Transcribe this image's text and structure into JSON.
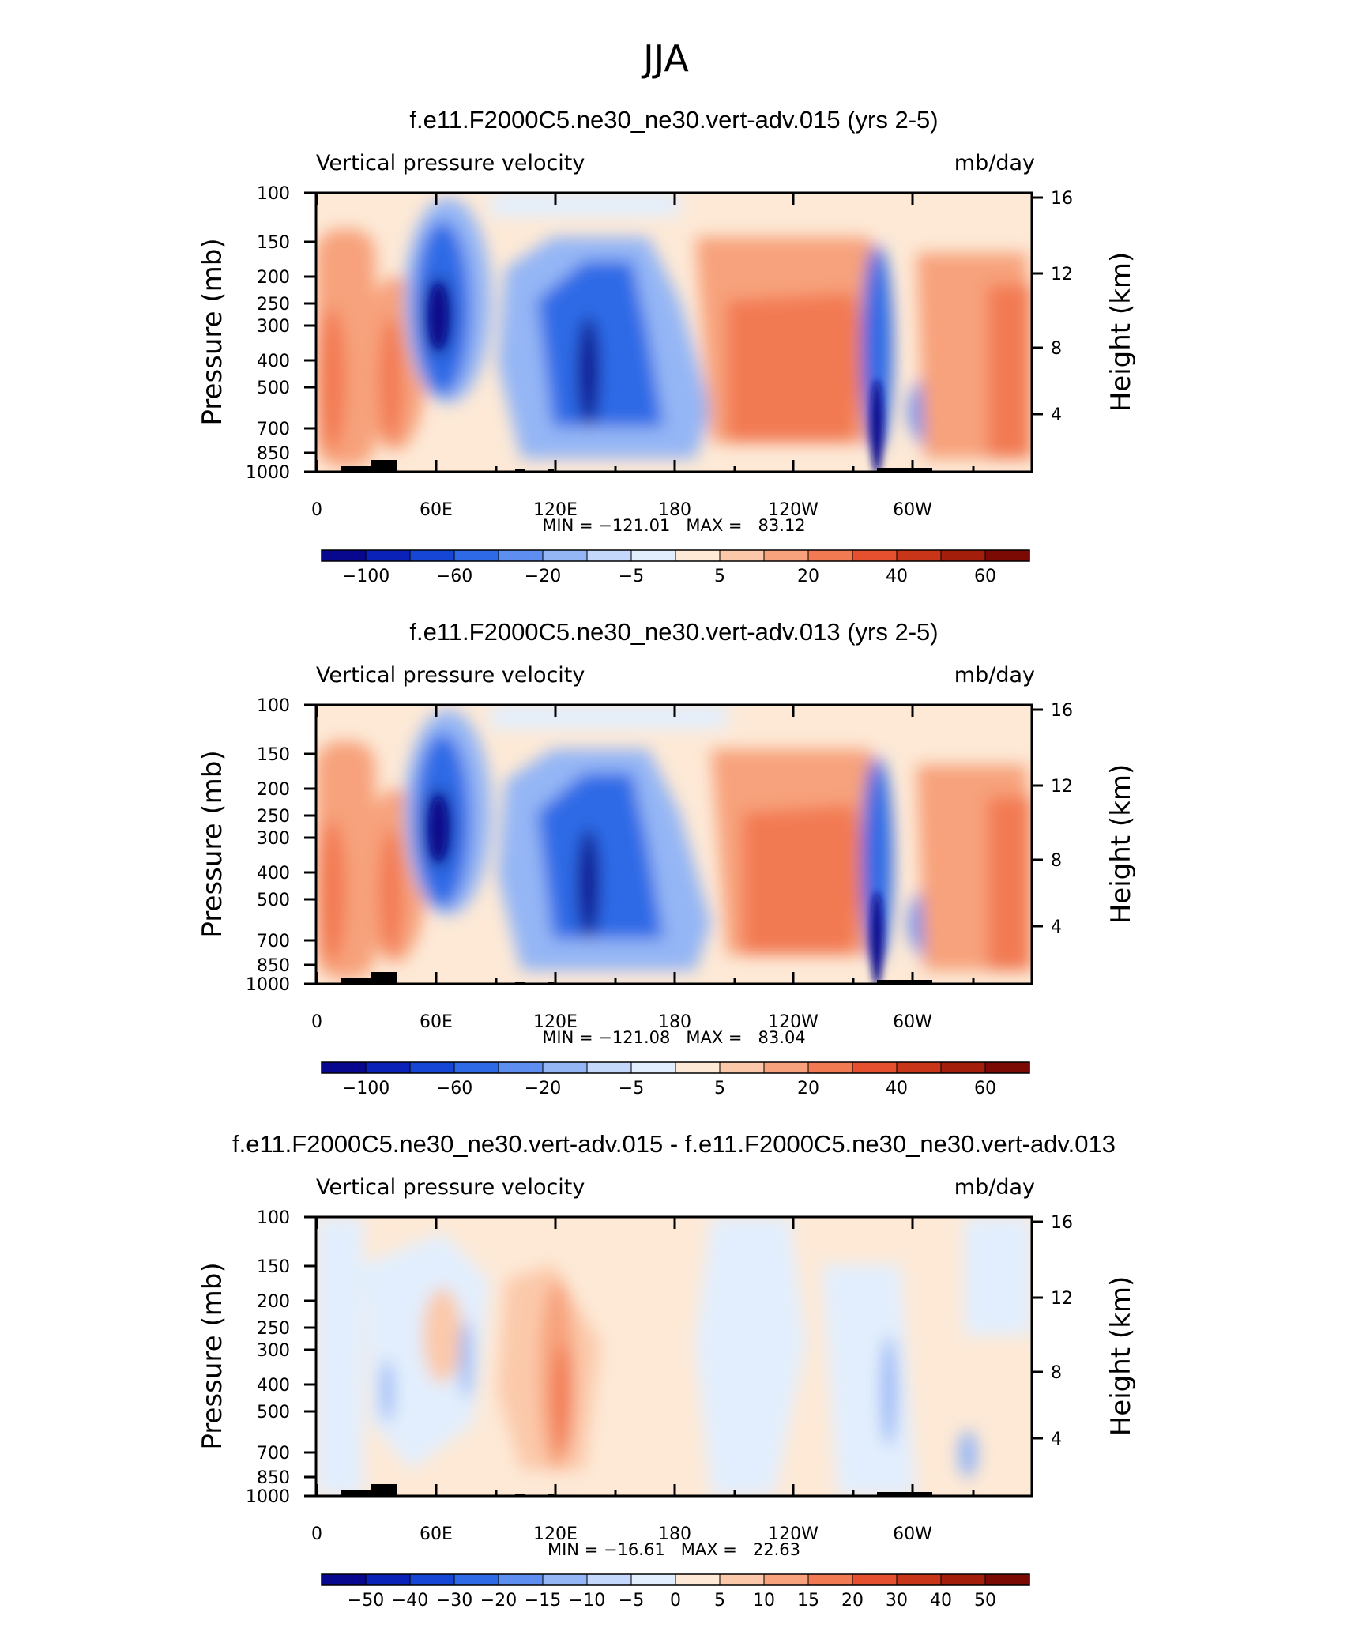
{
  "page_title": "JJA",
  "chart_data": [
    {
      "type": "heatmap",
      "title": "f.e11.F2000C5.ne30_ne30.vert-adv.015 (yrs 2-5)",
      "left_label": "Vertical pressure velocity",
      "right_label": "mb/day",
      "ylabel": "Pressure (mb)",
      "y2label": "Height (km)",
      "x_ticks": [
        "0",
        "60E",
        "120E",
        "180",
        "120W",
        "60W"
      ],
      "y_ticks": [
        "100",
        "150",
        "200",
        "250",
        "300",
        "400",
        "500",
        "700",
        "850",
        "1000"
      ],
      "y2_ticks": [
        "16",
        "12",
        "8",
        "4"
      ],
      "stats": "MIN = −121.01   MAX =   83.12",
      "min": -121.01,
      "max": 83.12,
      "colorbar_labels": [
        "−100",
        "−60",
        "−20",
        "−5",
        "5",
        "20",
        "40",
        "60"
      ],
      "colorbar_colors": [
        "#08088e",
        "#0a22b8",
        "#1546d6",
        "#2f6ae6",
        "#5e8ef0",
        "#94b6f5",
        "#c3d8fa",
        "#e2eefd",
        "#fde9d6",
        "#fbc9aa",
        "#f7a27c",
        "#f27a53",
        "#e6502e",
        "#c93519",
        "#a31f0c",
        "#7a0a03"
      ],
      "features": [
        {
          "lon": 12,
          "p": 400,
          "value": 20
        },
        {
          "lon": 35,
          "p": 400,
          "value": 40
        },
        {
          "lon": 60,
          "p": 280,
          "value": -110
        },
        {
          "lon": 120,
          "p": 400,
          "value": -60
        },
        {
          "lon": 135,
          "p": 450,
          "value": -70
        },
        {
          "lon": 245,
          "p": 400,
          "value": 30
        },
        {
          "lon": 280,
          "p": 600,
          "value": -100
        },
        {
          "lon": 345,
          "p": 450,
          "value": 30
        }
      ]
    },
    {
      "type": "heatmap",
      "title": "f.e11.F2000C5.ne30_ne30.vert-adv.013 (yrs 2-5)",
      "left_label": "Vertical pressure velocity",
      "right_label": "mb/day",
      "ylabel": "Pressure (mb)",
      "y2label": "Height (km)",
      "x_ticks": [
        "0",
        "60E",
        "120E",
        "180",
        "120W",
        "60W"
      ],
      "y_ticks": [
        "100",
        "150",
        "200",
        "250",
        "300",
        "400",
        "500",
        "700",
        "850",
        "1000"
      ],
      "y2_ticks": [
        "16",
        "12",
        "8",
        "4"
      ],
      "stats": "MIN = −121.08   MAX =   83.04",
      "min": -121.08,
      "max": 83.04,
      "colorbar_labels": [
        "−100",
        "−60",
        "−20",
        "−5",
        "5",
        "20",
        "40",
        "60"
      ],
      "colorbar_colors": [
        "#08088e",
        "#0a22b8",
        "#1546d6",
        "#2f6ae6",
        "#5e8ef0",
        "#94b6f5",
        "#c3d8fa",
        "#e2eefd",
        "#fde9d6",
        "#fbc9aa",
        "#f7a27c",
        "#f27a53",
        "#e6502e",
        "#c93519",
        "#a31f0c",
        "#7a0a03"
      ],
      "features": [
        {
          "lon": 12,
          "p": 400,
          "value": 20
        },
        {
          "lon": 35,
          "p": 400,
          "value": 40
        },
        {
          "lon": 60,
          "p": 280,
          "value": -110
        },
        {
          "lon": 120,
          "p": 400,
          "value": -60
        },
        {
          "lon": 135,
          "p": 450,
          "value": -70
        },
        {
          "lon": 250,
          "p": 400,
          "value": 30
        },
        {
          "lon": 280,
          "p": 600,
          "value": -100
        },
        {
          "lon": 345,
          "p": 450,
          "value": 30
        }
      ]
    },
    {
      "type": "heatmap",
      "title": "f.e11.F2000C5.ne30_ne30.vert-adv.015 - f.e11.F2000C5.ne30_ne30.vert-adv.013",
      "left_label": "Vertical pressure velocity",
      "right_label": "mb/day",
      "ylabel": "Pressure (mb)",
      "y2label": "Height (km)",
      "x_ticks": [
        "0",
        "60E",
        "120E",
        "180",
        "120W",
        "60W"
      ],
      "y_ticks": [
        "100",
        "150",
        "200",
        "250",
        "300",
        "400",
        "500",
        "700",
        "850",
        "1000"
      ],
      "y2_ticks": [
        "16",
        "12",
        "8",
        "4"
      ],
      "stats": "MIN = −16.61   MAX =   22.63",
      "min": -16.61,
      "max": 22.63,
      "colorbar_labels": [
        "−50",
        "−40",
        "−30",
        "−20",
        "−15",
        "−10",
        "−5",
        "0",
        "5",
        "10",
        "15",
        "20",
        "30",
        "40",
        "50"
      ],
      "colorbar_colors": [
        "#08088e",
        "#0a22b8",
        "#1546d6",
        "#2f6ae6",
        "#5e8ef0",
        "#94b6f5",
        "#c3d8fa",
        "#e2eefd",
        "#fde9d6",
        "#fbc9aa",
        "#f7a27c",
        "#f27a53",
        "#e6502e",
        "#c93519",
        "#a31f0c",
        "#7a0a03"
      ],
      "features": [
        {
          "lon": 70,
          "p": 300,
          "value": -10
        },
        {
          "lon": 115,
          "p": 300,
          "value": 15
        },
        {
          "lon": 120,
          "p": 350,
          "value": 20
        },
        {
          "lon": 285,
          "p": 400,
          "value": -8
        },
        {
          "lon": 330,
          "p": 700,
          "value": -8
        }
      ]
    }
  ]
}
